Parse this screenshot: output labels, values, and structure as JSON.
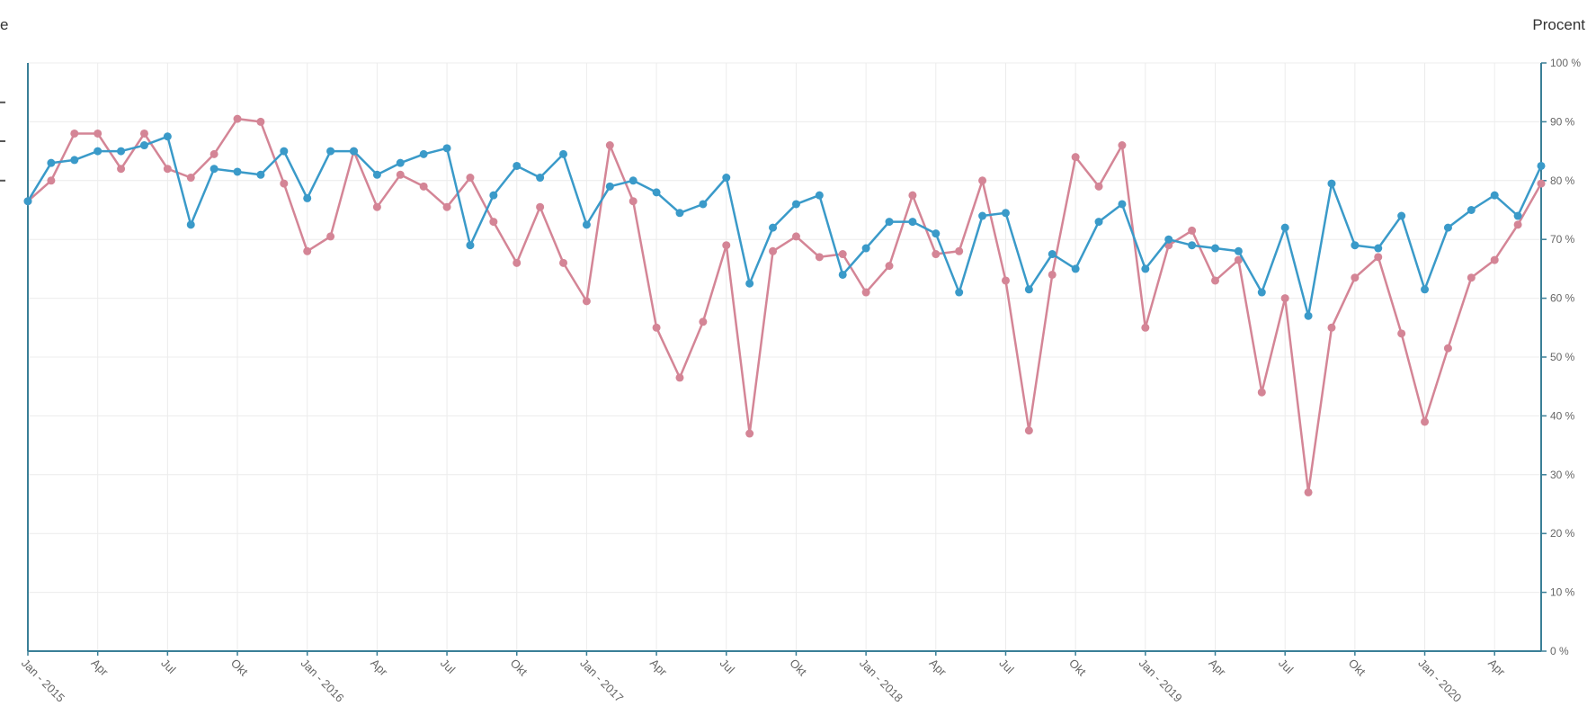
{
  "left_axis_title": "e",
  "right_axis_title": "Procent",
  "colors": {
    "series_blue": "#3a9ac9",
    "series_pink": "#d48596",
    "grid": "#ececec",
    "axis": "#3a7f97"
  },
  "chart_data": {
    "type": "line",
    "ylabel": "Procent",
    "ylim": [
      0,
      100
    ],
    "y_ticks": [
      "0 %",
      "10 %",
      "20 %",
      "30 %",
      "40 %",
      "50 %",
      "60 %",
      "70 %",
      "80 %",
      "90 %",
      "100 %"
    ],
    "x_tick_labels": [
      "Jan - 2015",
      "Apr",
      "Jul",
      "Okt",
      "Jan - 2016",
      "Apr",
      "Jul",
      "Okt",
      "Jan - 2017",
      "Apr",
      "Jul",
      "Okt",
      "Jan - 2018",
      "Apr",
      "Jul",
      "Okt",
      "Jan - 2019",
      "Apr",
      "Jul",
      "Okt",
      "Jan - 2020",
      "Apr"
    ],
    "x_tick_months": [
      0,
      3,
      6,
      9,
      12,
      15,
      18,
      21,
      24,
      27,
      30,
      33,
      36,
      39,
      42,
      45,
      48,
      51,
      54,
      57,
      60,
      63
    ],
    "x_start": "Jan 2015",
    "x_end": "Jun 2020",
    "series": [
      {
        "color": "#3a9ac9",
        "values": [
          76.5,
          83,
          83.5,
          85,
          85,
          86,
          87.5,
          72.5,
          82,
          81.5,
          81,
          85,
          77,
          85,
          85,
          81,
          83,
          84.5,
          85.5,
          69,
          77.5,
          82.5,
          80.5,
          84.5,
          72.5,
          79,
          80,
          78,
          74.5,
          76,
          80.5,
          62.5,
          72,
          76,
          77.5,
          64,
          68.5,
          73,
          73,
          71,
          61,
          74,
          74.5,
          61.5,
          67.5,
          65,
          73,
          76,
          65,
          70,
          69,
          68.5,
          68,
          61,
          72,
          57,
          79.5,
          69,
          68.5,
          74,
          61.5,
          72,
          75,
          77.5,
          74,
          82.5
        ]
      },
      {
        "color": "#d48596",
        "values": [
          76.5,
          80,
          88,
          88,
          82,
          88,
          82,
          80.5,
          84.5,
          90.5,
          90,
          79.5,
          68,
          70.5,
          85,
          75.5,
          81,
          79,
          75.5,
          80.5,
          73,
          66,
          75.5,
          66,
          59.5,
          86,
          76.5,
          55,
          46.5,
          56,
          69,
          37,
          68,
          70.5,
          67,
          67.5,
          61,
          65.5,
          77.5,
          67.5,
          68,
          80,
          63,
          37.5,
          64,
          84,
          79,
          86,
          55,
          69,
          71.5,
          63,
          66.5,
          44,
          60,
          27,
          55,
          63.5,
          67,
          54,
          39,
          51.5,
          63.5,
          66.5,
          72.5,
          79.5
        ]
      }
    ]
  }
}
